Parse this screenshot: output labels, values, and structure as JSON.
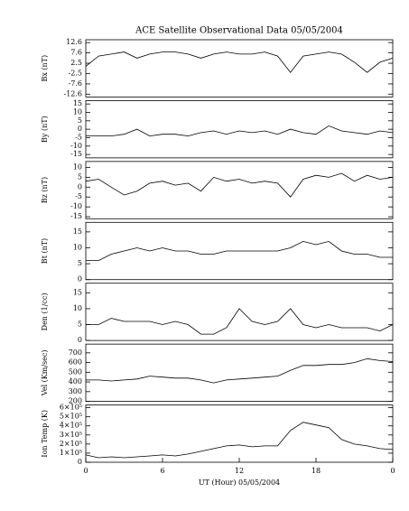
{
  "chart_data": [
    {
      "type": "line",
      "title": "ACE Satellite Observational Data   05/05/2004",
      "ylabel": "Bx (nT)",
      "xlim": [
        0,
        24
      ],
      "ylim": [
        -14,
        14
      ],
      "yticks": [
        12.6,
        7.6,
        2.5,
        -2.5,
        -7.6,
        -12.6
      ],
      "color": "#000000",
      "x": [
        0,
        1,
        2,
        3,
        4,
        5,
        6,
        7,
        8,
        9,
        10,
        11,
        12,
        13,
        14,
        15,
        16,
        17,
        18,
        19,
        20,
        21,
        22,
        23,
        24
      ],
      "values": [
        1,
        6,
        7,
        8,
        5,
        7,
        8,
        8,
        7,
        5,
        7,
        8,
        7,
        7,
        8,
        6,
        -2,
        6,
        7,
        8,
        7,
        3,
        -2,
        3,
        5
      ]
    },
    {
      "type": "line",
      "ylabel": "By (nT)",
      "xlim": [
        0,
        24
      ],
      "ylim": [
        -17,
        17
      ],
      "yticks": [
        15,
        10,
        5,
        0,
        -5,
        -10,
        -15
      ],
      "color": "#000000",
      "x": [
        0,
        1,
        2,
        3,
        4,
        5,
        6,
        7,
        8,
        9,
        10,
        11,
        12,
        13,
        14,
        15,
        16,
        17,
        18,
        19,
        20,
        21,
        22,
        23,
        24
      ],
      "values": [
        -4,
        -4,
        -4,
        -3,
        0,
        -4,
        -3,
        -3,
        -4,
        -2,
        -1,
        -3,
        -1,
        -2,
        -1,
        -3,
        0,
        -2,
        -3,
        2,
        -1,
        -2,
        -3,
        -1,
        -2
      ]
    },
    {
      "type": "line",
      "ylabel": "Bz (nT)",
      "xlim": [
        0,
        24
      ],
      "ylim": [
        -16,
        13
      ],
      "yticks": [
        10,
        5,
        0,
        -5,
        -10,
        -15
      ],
      "color": "#000000",
      "x": [
        0,
        1,
        2,
        3,
        4,
        5,
        6,
        7,
        8,
        9,
        10,
        11,
        12,
        13,
        14,
        15,
        16,
        17,
        18,
        19,
        20,
        21,
        22,
        23,
        24
      ],
      "values": [
        3,
        4,
        0,
        -4,
        -2,
        2,
        3,
        1,
        2,
        -2,
        5,
        3,
        4,
        2,
        3,
        2,
        -5,
        4,
        6,
        5,
        7,
        3,
        6,
        4,
        5
      ]
    },
    {
      "type": "line",
      "ylabel": "Bt (nT)",
      "xlim": [
        0,
        24
      ],
      "ylim": [
        0,
        18
      ],
      "yticks": [
        0,
        5,
        10,
        15
      ],
      "color": "#000000",
      "x": [
        0,
        1,
        2,
        3,
        4,
        5,
        6,
        7,
        8,
        9,
        10,
        11,
        12,
        13,
        14,
        15,
        16,
        17,
        18,
        19,
        20,
        21,
        22,
        23,
        24
      ],
      "values": [
        6,
        6,
        8,
        9,
        10,
        9,
        10,
        9,
        9,
        8,
        8,
        9,
        9,
        9,
        9,
        9,
        10,
        12,
        11,
        12,
        9,
        8,
        8,
        7,
        7
      ]
    },
    {
      "type": "line",
      "ylabel": "Den (1/cc)",
      "xlim": [
        0,
        24
      ],
      "ylim": [
        0,
        18
      ],
      "yticks": [
        0,
        5,
        10,
        15
      ],
      "color": "#000000",
      "x": [
        0,
        1,
        2,
        3,
        4,
        5,
        6,
        7,
        8,
        9,
        10,
        11,
        12,
        13,
        14,
        15,
        16,
        17,
        18,
        19,
        20,
        21,
        22,
        23,
        24
      ],
      "values": [
        5,
        5,
        7,
        6,
        6,
        6,
        5,
        6,
        5,
        2,
        2,
        4,
        10,
        6,
        5,
        6,
        10,
        5,
        4,
        5,
        4,
        4,
        4,
        3,
        5
      ]
    },
    {
      "type": "line",
      "ylabel": "Vel (Km/sec)",
      "xlim": [
        0,
        24
      ],
      "ylim": [
        200,
        790
      ],
      "yticks": [
        200,
        300,
        400,
        500,
        600,
        700
      ],
      "color": "#000000",
      "x": [
        0,
        1,
        2,
        3,
        4,
        5,
        6,
        7,
        8,
        9,
        10,
        11,
        12,
        13,
        14,
        15,
        16,
        17,
        18,
        19,
        20,
        21,
        22,
        23,
        24
      ],
      "values": [
        420,
        420,
        410,
        420,
        430,
        460,
        450,
        440,
        440,
        420,
        390,
        420,
        430,
        440,
        450,
        460,
        520,
        570,
        570,
        580,
        580,
        600,
        640,
        620,
        610
      ]
    },
    {
      "type": "line",
      "ylabel": "Ion Temp (K)",
      "xlabel": "UT (Hour)   05/05/2004",
      "xlim": [
        0,
        24
      ],
      "xticks": [
        0,
        6,
        12,
        18,
        {
          "value": 24,
          "label": "0"
        }
      ],
      "ylim": [
        0,
        630000
      ],
      "yticks": [
        0,
        {
          "value": 100000,
          "label": "1×10⁵"
        },
        {
          "value": 200000,
          "label": "2×10⁵"
        },
        {
          "value": 300000,
          "label": "3×10⁵"
        },
        {
          "value": 400000,
          "label": "4×10⁵"
        },
        {
          "value": 500000,
          "label": "5×10⁵"
        },
        {
          "value": 600000,
          "label": "6×10⁵"
        }
      ],
      "color": "#000000",
      "x": [
        0,
        1,
        2,
        3,
        4,
        5,
        6,
        7,
        8,
        9,
        10,
        11,
        12,
        13,
        14,
        15,
        16,
        17,
        18,
        19,
        20,
        21,
        22,
        23,
        24
      ],
      "values": [
        80000,
        50000,
        60000,
        50000,
        60000,
        70000,
        80000,
        70000,
        90000,
        120000,
        150000,
        180000,
        190000,
        170000,
        180000,
        180000,
        350000,
        440000,
        410000,
        380000,
        250000,
        200000,
        180000,
        150000,
        140000
      ]
    }
  ]
}
